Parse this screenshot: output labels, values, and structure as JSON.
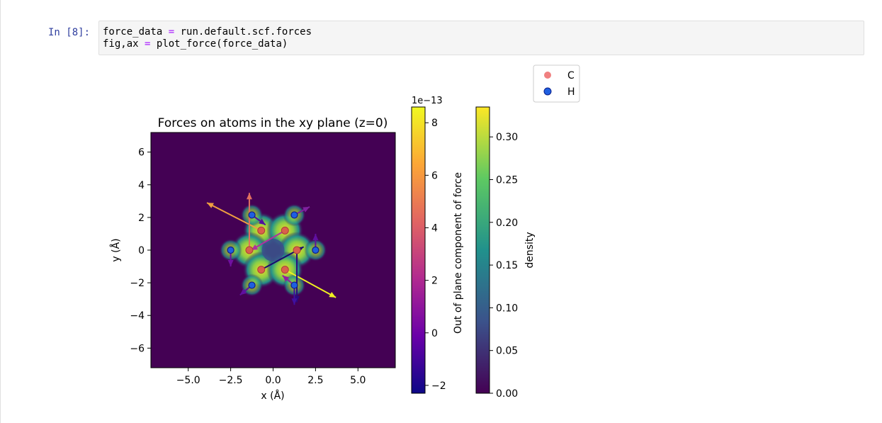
{
  "cell": {
    "prompt": "In [8]:",
    "lines": [
      {
        "lhs": "force_data",
        "op": "=",
        "rhs": "run.default.scf.forces"
      },
      {
        "lhs": "fig,ax",
        "op": "=",
        "rhs": "plot_force(force_data)"
      }
    ]
  },
  "chart_data": {
    "type": "scatter",
    "title": "Forces on atoms in the xy plane (z=0)",
    "xlabel": "x (Å)",
    "ylabel": "y (Å)",
    "xlim": [
      -7.2,
      7.2
    ],
    "ylim": [
      -7.2,
      7.2
    ],
    "xticks": [
      -5.0,
      -2.5,
      0.0,
      2.5,
      5.0
    ],
    "xtick_labels": [
      "−5.0",
      "−2.5",
      "0.0",
      "2.5",
      "5.0"
    ],
    "yticks": [
      6,
      4,
      2,
      0,
      -2,
      -4,
      -6
    ],
    "ytick_labels": [
      "6",
      "4",
      "2",
      "0",
      "−2",
      "−4",
      "−6"
    ],
    "legend": {
      "placement": "top-right",
      "entries": [
        {
          "label": "C",
          "color": "#f08080"
        },
        {
          "label": "H",
          "color": "#1f5fe0"
        }
      ]
    },
    "atoms": [
      {
        "species": "C",
        "x": -0.7,
        "y": 1.2
      },
      {
        "species": "C",
        "x": 0.7,
        "y": 1.2
      },
      {
        "species": "C",
        "x": -1.4,
        "y": 0.0
      },
      {
        "species": "C",
        "x": 1.4,
        "y": 0.0
      },
      {
        "species": "C",
        "x": -0.7,
        "y": -1.2
      },
      {
        "species": "C",
        "x": 0.7,
        "y": -1.2
      },
      {
        "species": "H",
        "x": -1.25,
        "y": 2.15
      },
      {
        "species": "H",
        "x": 1.25,
        "y": 2.15
      },
      {
        "species": "H",
        "x": -2.5,
        "y": 0.0
      },
      {
        "species": "H",
        "x": 2.5,
        "y": 0.0
      },
      {
        "species": "H",
        "x": -1.25,
        "y": -2.15
      },
      {
        "species": "H",
        "x": 1.25,
        "y": -2.15
      }
    ],
    "force_arrows": [
      {
        "x": -0.7,
        "y": 1.2,
        "dx": -3.2,
        "dy": 1.7,
        "color": "#f0a040"
      },
      {
        "x": -1.4,
        "y": 0.0,
        "dx": 0.0,
        "dy": 3.5,
        "color": "#e07060"
      },
      {
        "x": 0.7,
        "y": -1.2,
        "dx": 3.0,
        "dy": -1.7,
        "color": "#f0f020"
      },
      {
        "x": 1.4,
        "y": 0.0,
        "dx": 0.0,
        "dy": -3.2,
        "color": "#2a0a80"
      },
      {
        "x": -0.7,
        "y": -1.2,
        "dx": 2.5,
        "dy": 1.4,
        "color": "#1a0a70"
      },
      {
        "x": 0.7,
        "y": 1.2,
        "dx": -2.0,
        "dy": -1.2,
        "color": "#b030a0"
      },
      {
        "x": -1.25,
        "y": 2.15,
        "dx": 0.8,
        "dy": -0.6,
        "color": "#5010a0"
      },
      {
        "x": 1.25,
        "y": 2.15,
        "dx": 0.9,
        "dy": 0.5,
        "color": "#8020a0"
      },
      {
        "x": -2.5,
        "y": 0.0,
        "dx": 0.0,
        "dy": -1.0,
        "color": "#7010a0"
      },
      {
        "x": 2.5,
        "y": 0.0,
        "dx": 0.0,
        "dy": 1.0,
        "color": "#6010a0"
      },
      {
        "x": -1.25,
        "y": -2.15,
        "dx": -0.7,
        "dy": -0.6,
        "color": "#6010a0"
      },
      {
        "x": 1.25,
        "y": -2.15,
        "dx": -0.7,
        "dy": 0.6,
        "color": "#9020a0"
      },
      {
        "x": 1.25,
        "y": -2.15,
        "dx": 0.0,
        "dy": -1.2,
        "color": "#4010a0"
      }
    ],
    "force_colorbar": {
      "label": "Out of plane component of force",
      "offset_text": "1e−13",
      "ticks": [
        8,
        6,
        4,
        2,
        0,
        -2
      ],
      "tick_labels": [
        "8",
        "6",
        "4",
        "2",
        "0",
        "−2"
      ],
      "range": [
        -2.3,
        8.6
      ],
      "colormap": [
        "#0d0887",
        "#6a00a8",
        "#b12a90",
        "#e16462",
        "#fca636",
        "#f0f921"
      ]
    },
    "density_colorbar": {
      "label": "density",
      "ticks": [
        0.3,
        0.25,
        0.2,
        0.15,
        0.1,
        0.05,
        0.0
      ],
      "tick_labels": [
        "0.30",
        "0.25",
        "0.20",
        "0.15",
        "0.10",
        "0.05",
        "0.00"
      ],
      "range": [
        0.0,
        0.335
      ],
      "colormap": [
        "#440154",
        "#3b528b",
        "#21918c",
        "#5ec962",
        "#fde725"
      ]
    }
  }
}
